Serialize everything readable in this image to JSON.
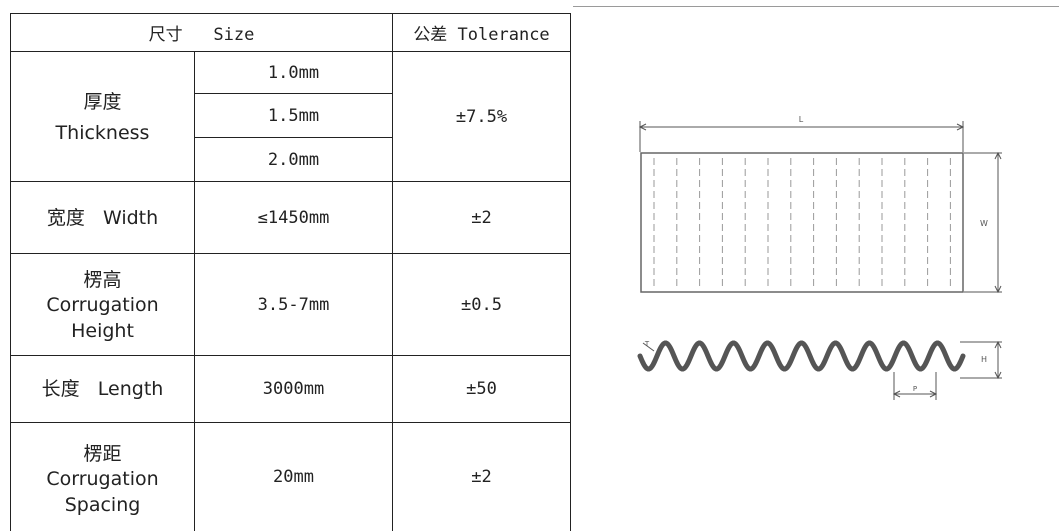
{
  "header": {
    "size": "尺寸   Size",
    "tolerance": "公差 Tolerance"
  },
  "rows": {
    "thickness": {
      "label_cn": "厚度",
      "label_en": "Thickness",
      "values": [
        "1.0mm",
        "1.5mm",
        "2.0mm"
      ],
      "tolerance": "±7.5%"
    },
    "width": {
      "label": "宽度   Width",
      "value": "≤1450mm",
      "tolerance": "±2"
    },
    "corrugation_height": {
      "label_cn": "楞高",
      "label_en_1": "Corrugation",
      "label_en_2": "Height",
      "value": "3.5-7mm",
      "tolerance": "±0.5"
    },
    "length": {
      "label": "长度   Length",
      "value": "3000mm",
      "tolerance": "±50"
    },
    "corrugation_spacing": {
      "label_cn": "楞距",
      "label_en_1": "Corrugation",
      "label_en_2": "Spacing",
      "value": "20mm",
      "tolerance": "±2"
    }
  },
  "drawing": {
    "length_label": "L",
    "width_label": "W",
    "height_label": "H",
    "pitch_label": "P",
    "thickness_label": "T"
  }
}
